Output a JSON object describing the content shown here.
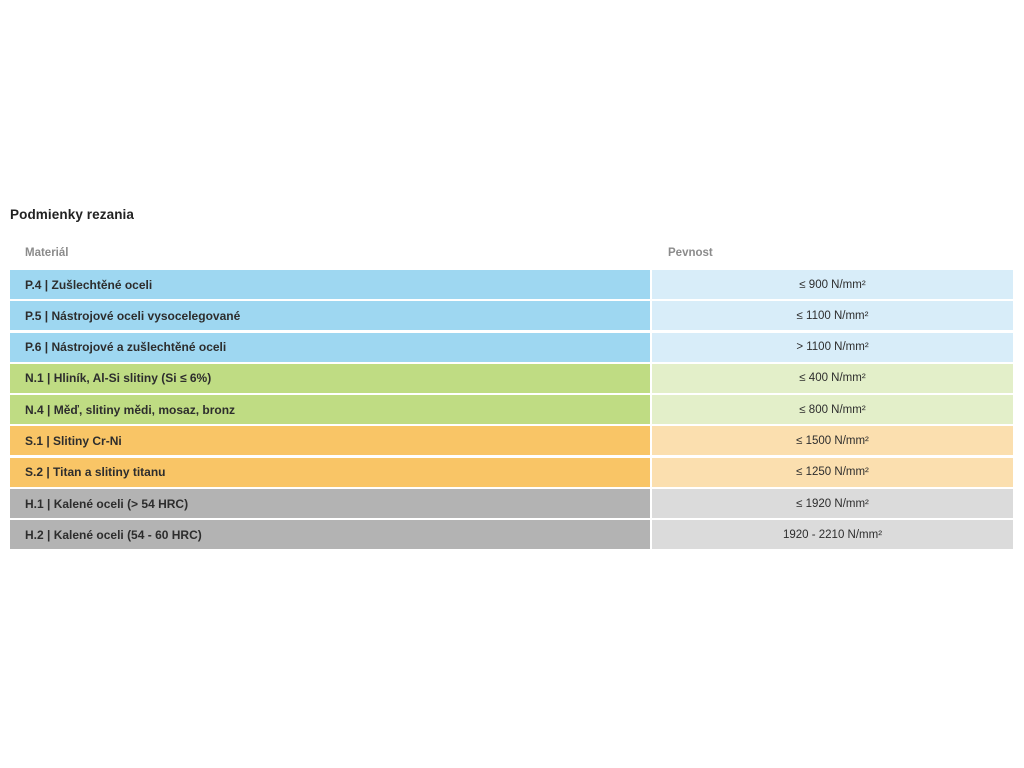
{
  "title": "Podmienky rezania",
  "table": {
    "headers": [
      "Materiál",
      "Pevnost"
    ],
    "rows": [
      {
        "material": "P.4 | Zušlechtěné oceli",
        "strength": "≤ 900 N/mm²",
        "color": "blue"
      },
      {
        "material": "P.5 | Nástrojové oceli vysocelegované",
        "strength": "≤ 1100 N/mm²",
        "color": "blue"
      },
      {
        "material": "P.6 | Nástrojové a zušlechtěné oceli",
        "strength": "> 1100 N/mm²",
        "color": "blue"
      },
      {
        "material": "N.1 | Hliník, Al-Si slitiny (Si ≤ 6%)",
        "strength": "≤ 400 N/mm²",
        "color": "green"
      },
      {
        "material": "N.4 | Měď, slitiny mědi, mosaz, bronz",
        "strength": "≤ 800 N/mm²",
        "color": "green"
      },
      {
        "material": "S.1 | Slitiny Cr-Ni",
        "strength": "≤ 1500 N/mm²",
        "color": "orange"
      },
      {
        "material": "S.2 | Titan a slitiny titanu",
        "strength": "≤ 1250 N/mm²",
        "color": "orange"
      },
      {
        "material": "H.1 | Kalené oceli (> 54 HRC)",
        "strength": "≤ 1920 N/mm²",
        "color": "gray"
      },
      {
        "material": "H.2 | Kalené oceli (54 - 60 HRC)",
        "strength": "1920 - 2210 N/mm²",
        "color": "gray"
      }
    ]
  },
  "colors": {
    "blue": {
      "dark": "#9ed7f1",
      "light": "#d8edf9"
    },
    "green": {
      "dark": "#bfdc83",
      "light": "#e3efc9"
    },
    "orange": {
      "dark": "#f9c566",
      "light": "#fbdfaf"
    },
    "gray": {
      "dark": "#b3b3b3",
      "light": "#dbdbdb"
    }
  }
}
